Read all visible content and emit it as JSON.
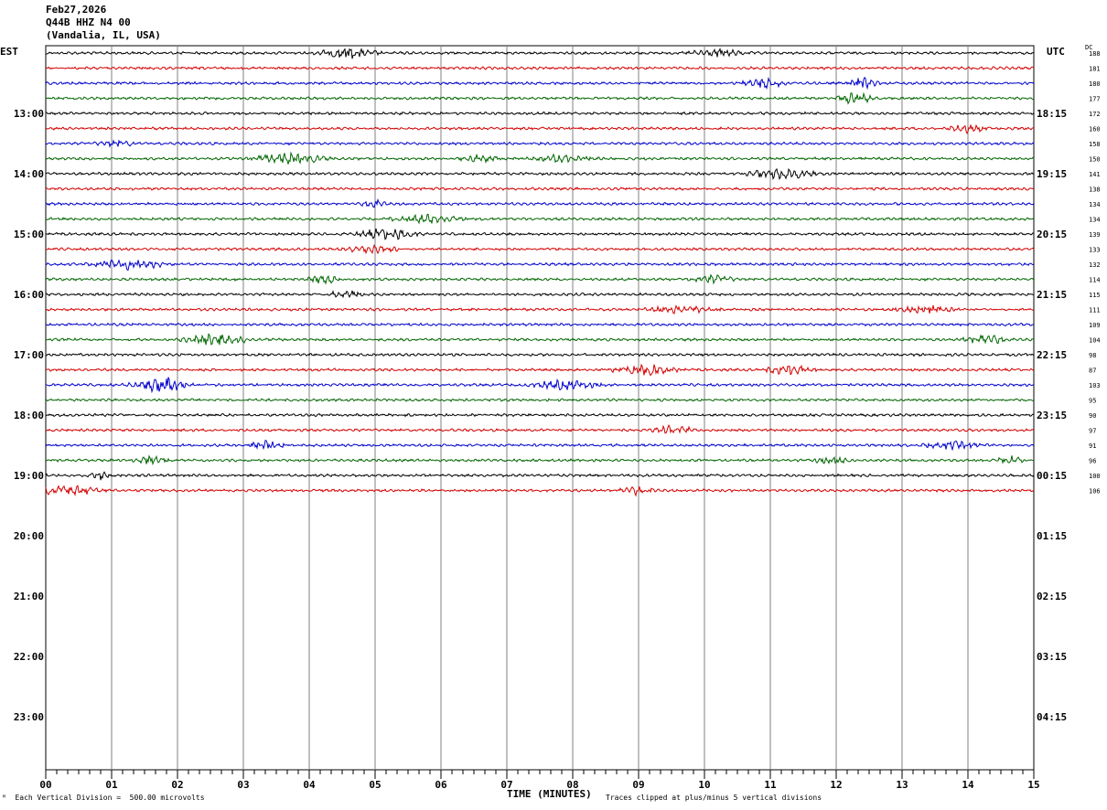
{
  "header": {
    "date": "Feb27,2026",
    "station": "Q44B HHZ N4 00",
    "location": "(Vandalia, IL, USA)"
  },
  "left_timezone": "EST",
  "right_timezone": "UTC",
  "dc_header": "DC",
  "chart_data": {
    "type": "line",
    "title": "Q44B HHZ N4 00",
    "xlabel": "TIME (MINUTES)",
    "x_ticks": [
      "00",
      "01",
      "02",
      "03",
      "04",
      "05",
      "06",
      "07",
      "08",
      "09",
      "10",
      "11",
      "12",
      "13",
      "14",
      "15"
    ],
    "xlim": [
      0,
      15
    ],
    "grid": true,
    "hour_labels_left": [
      "13:00",
      "14:00",
      "15:00",
      "16:00",
      "17:00",
      "18:00",
      "19:00",
      "20:00",
      "21:00",
      "22:00",
      "23:00"
    ],
    "hour_labels_right": [
      "18:15",
      "19:15",
      "20:15",
      "21:15",
      "22:15",
      "23:15",
      "00:15",
      "01:15",
      "02:15",
      "03:15",
      "04:15"
    ],
    "trace_colors": [
      "#000000",
      "#d40000",
      "#0000cc",
      "#006600"
    ],
    "dc_offsets": [
      "188",
      "181",
      "180",
      "177",
      "172",
      "160",
      "158",
      "150",
      "141",
      "138",
      "134",
      "134",
      "139",
      "133",
      "132",
      "114",
      "115",
      "111",
      "109",
      "104",
      "98",
      "87",
      "103",
      "95",
      "90",
      "97",
      "91",
      "96",
      "100",
      "106"
    ],
    "traces_recorded": 30,
    "traces_per_hour": 4,
    "minutes_per_trace": 15
  },
  "footer": {
    "scale": "Each Vertical Division =  500.00 microvolts",
    "clip": "Traces clipped at plus/minus 5 vertical divisions"
  }
}
